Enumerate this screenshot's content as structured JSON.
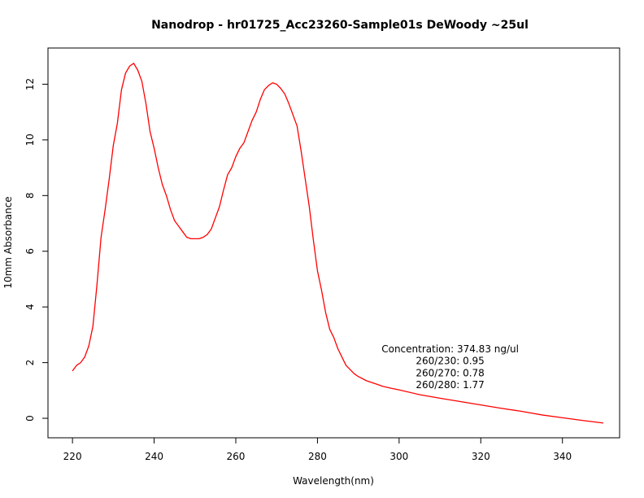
{
  "chart_data": {
    "type": "line",
    "title": "Nanodrop - hr01725_Acc23260-Sample01s DeWoody ~25ul",
    "xlabel": "Wavelength(nm)",
    "ylabel": "10mm Absorbance",
    "xlim": [
      214,
      354
    ],
    "ylim": [
      -0.7,
      13.3
    ],
    "xticks": [
      220,
      240,
      260,
      280,
      300,
      320,
      340
    ],
    "yticks": [
      0,
      2,
      4,
      6,
      8,
      10,
      12
    ],
    "grid": false,
    "legend": "none",
    "series": [
      {
        "color": "#ff0000",
        "points": [
          [
            220,
            1.7
          ],
          [
            221,
            1.9
          ],
          [
            222,
            2.0
          ],
          [
            223,
            2.2
          ],
          [
            224,
            2.6
          ],
          [
            225,
            3.3
          ],
          [
            226,
            4.8
          ],
          [
            227,
            6.5
          ],
          [
            228,
            7.5
          ],
          [
            229,
            8.6
          ],
          [
            230,
            9.8
          ],
          [
            231,
            10.6
          ],
          [
            232,
            11.8
          ],
          [
            233,
            12.4
          ],
          [
            234,
            12.65
          ],
          [
            235,
            12.75
          ],
          [
            236,
            12.5
          ],
          [
            237,
            12.1
          ],
          [
            238,
            11.3
          ],
          [
            239,
            10.3
          ],
          [
            240,
            9.7
          ],
          [
            241,
            9.0
          ],
          [
            242,
            8.4
          ],
          [
            243,
            8.0
          ],
          [
            244,
            7.5
          ],
          [
            245,
            7.1
          ],
          [
            246,
            6.9
          ],
          [
            247,
            6.7
          ],
          [
            248,
            6.5
          ],
          [
            249,
            6.45
          ],
          [
            250,
            6.45
          ],
          [
            251,
            6.45
          ],
          [
            252,
            6.5
          ],
          [
            253,
            6.6
          ],
          [
            254,
            6.8
          ],
          [
            255,
            7.2
          ],
          [
            256,
            7.6
          ],
          [
            257,
            8.2
          ],
          [
            258,
            8.75
          ],
          [
            259,
            9.0
          ],
          [
            260,
            9.4
          ],
          [
            261,
            9.7
          ],
          [
            262,
            9.9
          ],
          [
            263,
            10.3
          ],
          [
            264,
            10.7
          ],
          [
            265,
            11.0
          ],
          [
            266,
            11.45
          ],
          [
            267,
            11.8
          ],
          [
            268,
            11.95
          ],
          [
            269,
            12.05
          ],
          [
            270,
            12.0
          ],
          [
            271,
            11.85
          ],
          [
            272,
            11.65
          ],
          [
            273,
            11.3
          ],
          [
            274,
            10.9
          ],
          [
            275,
            10.5
          ],
          [
            276,
            9.6
          ],
          [
            277,
            8.6
          ],
          [
            278,
            7.6
          ],
          [
            279,
            6.4
          ],
          [
            280,
            5.3
          ],
          [
            281,
            4.6
          ],
          [
            282,
            3.8
          ],
          [
            283,
            3.2
          ],
          [
            284,
            2.9
          ],
          [
            285,
            2.5
          ],
          [
            286,
            2.2
          ],
          [
            287,
            1.9
          ],
          [
            288,
            1.75
          ],
          [
            289,
            1.6
          ],
          [
            290,
            1.5
          ],
          [
            292,
            1.35
          ],
          [
            294,
            1.25
          ],
          [
            296,
            1.15
          ],
          [
            298,
            1.08
          ],
          [
            300,
            1.02
          ],
          [
            305,
            0.85
          ],
          [
            310,
            0.72
          ],
          [
            315,
            0.6
          ],
          [
            320,
            0.48
          ],
          [
            325,
            0.36
          ],
          [
            330,
            0.25
          ],
          [
            335,
            0.12
          ],
          [
            340,
            0.02
          ],
          [
            345,
            -0.08
          ],
          [
            350,
            -0.17
          ]
        ]
      }
    ],
    "annotations": [
      "Concentration: 374.83 ng/ul",
      "260/230: 0.95",
      "260/270: 0.78",
      "260/280: 1.77"
    ]
  }
}
